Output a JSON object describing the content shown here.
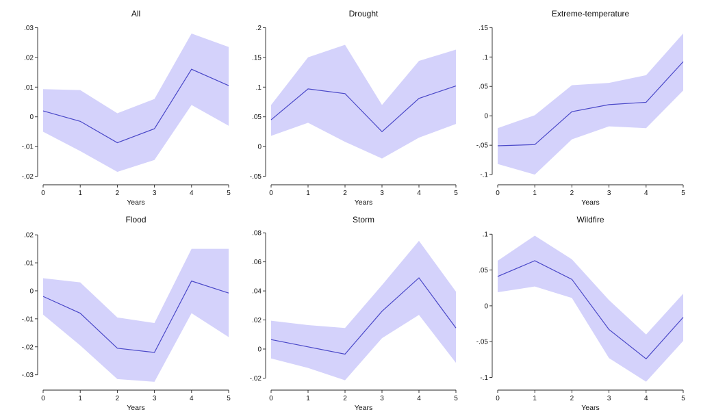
{
  "colors": {
    "line": "#4a48c8",
    "band": "#d4d2fb"
  },
  "chart_data": [
    {
      "type": "line",
      "title": "All",
      "xlabel": "Years",
      "x": [
        0,
        1,
        2,
        3,
        4,
        5
      ],
      "xticks": [
        "0",
        "1",
        "2",
        "3",
        "4",
        "5"
      ],
      "ylim": [
        -0.021,
        0.031
      ],
      "yticks": [
        -0.02,
        -0.01,
        0,
        0.01,
        0.02,
        0.03
      ],
      "ytick_labels": [
        "-.02",
        "-.01",
        "0",
        ".01",
        ".02",
        ".03"
      ],
      "series": [
        {
          "values": [
            0.002,
            -0.0015,
            -0.0087,
            -0.004,
            0.016,
            0.0105
          ],
          "ci_lower": [
            -0.005,
            -0.0115,
            -0.0185,
            -0.0145,
            0.004,
            -0.003
          ],
          "ci_upper": [
            0.0093,
            0.009,
            0.0012,
            0.006,
            0.028,
            0.0235
          ]
        }
      ]
    },
    {
      "type": "line",
      "title": "Drought",
      "xlabel": "Years",
      "x": [
        0,
        1,
        2,
        3,
        4,
        5
      ],
      "xticks": [
        "0",
        "1",
        "2",
        "3",
        "4",
        "5"
      ],
      "ylim": [
        -0.055,
        0.205
      ],
      "yticks": [
        -0.05,
        0,
        0.05,
        0.1,
        0.15,
        0.2
      ],
      "ytick_labels": [
        "-.05",
        "0",
        ".05",
        ".1",
        ".15",
        ".2"
      ],
      "series": [
        {
          "values": [
            0.045,
            0.097,
            0.089,
            0.025,
            0.081,
            0.102
          ],
          "ci_lower": [
            0.018,
            0.04,
            0.008,
            -0.02,
            0.015,
            0.038
          ],
          "ci_upper": [
            0.07,
            0.15,
            0.171,
            0.07,
            0.144,
            0.163
          ]
        }
      ]
    },
    {
      "type": "line",
      "title": "Extreme-temperature",
      "xlabel": "Years",
      "x": [
        0,
        1,
        2,
        3,
        4,
        5
      ],
      "xticks": [
        "0",
        "1",
        "2",
        "3",
        "4",
        "5"
      ],
      "ylim": [
        -0.108,
        0.155
      ],
      "yticks": [
        -0.1,
        -0.05,
        0,
        0.05,
        0.1,
        0.15
      ],
      "ytick_labels": [
        "-.1",
        "-.05",
        "0",
        ".05",
        ".1",
        ".15"
      ],
      "series": [
        {
          "values": [
            -0.051,
            -0.049,
            0.007,
            0.019,
            0.023,
            0.092
          ],
          "ci_lower": [
            -0.082,
            -0.1,
            -0.04,
            -0.018,
            -0.021,
            0.043
          ],
          "ci_upper": [
            -0.021,
            0.001,
            0.052,
            0.056,
            0.069,
            0.14
          ]
        }
      ]
    },
    {
      "type": "line",
      "title": "Flood",
      "xlabel": "Years",
      "x": [
        0,
        1,
        2,
        3,
        4,
        5
      ],
      "xticks": [
        "0",
        "1",
        "2",
        "3",
        "4",
        "5"
      ],
      "ylim": [
        -0.0335,
        0.0215
      ],
      "yticks": [
        -0.03,
        -0.02,
        -0.01,
        0,
        0.01,
        0.02
      ],
      "ytick_labels": [
        "-.03",
        "-.02",
        "-.01",
        "0",
        ".01",
        ".02"
      ],
      "series": [
        {
          "values": [
            -0.002,
            -0.008,
            -0.0205,
            -0.022,
            0.0035,
            -0.0008
          ],
          "ci_lower": [
            -0.0085,
            -0.0195,
            -0.0315,
            -0.0325,
            -0.008,
            -0.0165
          ],
          "ci_upper": [
            0.0045,
            0.003,
            -0.0095,
            -0.0115,
            0.015,
            0.015
          ]
        }
      ]
    },
    {
      "type": "line",
      "title": "Storm",
      "xlabel": "Years",
      "x": [
        0,
        1,
        2,
        3,
        4,
        5
      ],
      "xticks": [
        "0",
        "1",
        "2",
        "3",
        "4",
        "5"
      ],
      "ylim": [
        -0.0245,
        0.0815
      ],
      "yticks": [
        -0.02,
        0,
        0.02,
        0.04,
        0.06,
        0.08
      ],
      "ytick_labels": [
        "-.02",
        "0",
        ".02",
        ".04",
        ".06",
        ".08"
      ],
      "series": [
        {
          "values": [
            0.0065,
            0.0015,
            -0.0035,
            0.026,
            0.049,
            0.0145
          ],
          "ci_lower": [
            -0.0065,
            -0.013,
            -0.0215,
            0.0075,
            0.0235,
            -0.0095
          ],
          "ci_upper": [
            0.0195,
            0.0165,
            0.0145,
            0.044,
            0.0745,
            0.0395
          ]
        }
      ]
    },
    {
      "type": "line",
      "title": "Wildfire",
      "xlabel": "Years",
      "x": [
        0,
        1,
        2,
        3,
        4,
        5
      ],
      "xticks": [
        "0",
        "1",
        "2",
        "3",
        "4",
        "5"
      ],
      "ylim": [
        -0.11,
        0.105
      ],
      "yticks": [
        -0.1,
        -0.05,
        0,
        0.05,
        0.1
      ],
      "ytick_labels": [
        "-.1",
        "-.05",
        "0",
        ".05",
        ".1"
      ],
      "series": [
        {
          "values": [
            0.041,
            0.063,
            0.037,
            -0.033,
            -0.074,
            -0.016
          ],
          "ci_lower": [
            0.019,
            0.027,
            0.011,
            -0.073,
            -0.106,
            -0.049
          ],
          "ci_upper": [
            0.063,
            0.098,
            0.065,
            0.008,
            -0.04,
            0.017
          ]
        }
      ]
    }
  ]
}
